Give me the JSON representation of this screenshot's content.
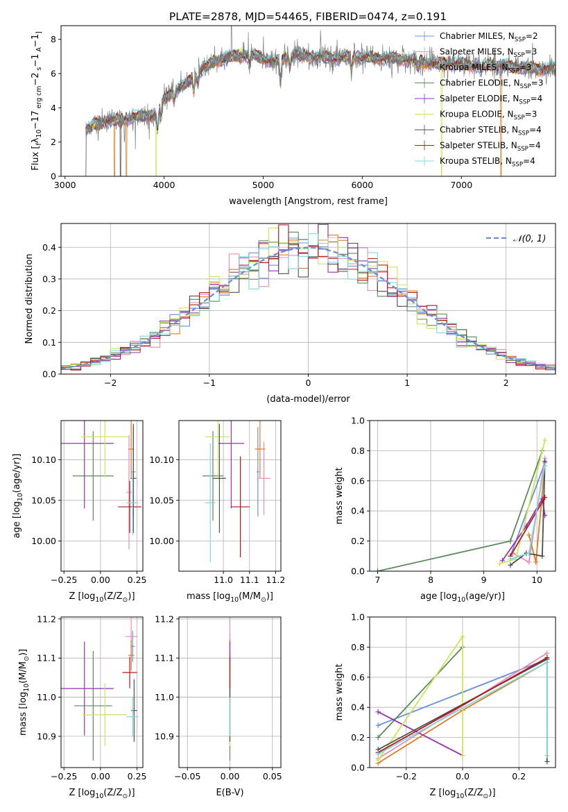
{
  "figure_title": "PLATE=2878, MJD=54465, FIBERID=0474, z=0.191",
  "colors": {
    "Chabrier MILES": "#6a8fd8",
    "Salpeter MILES": "#e88bbf",
    "Kroupa MILES": "#e07b20",
    "Chabrier ELODIE": "#5a8a5a",
    "Salpeter ELODIE": "#9a2fb0",
    "Kroupa ELODIE": "#c9e65a",
    "Chabrier STELIB": "#4d4d4d",
    "Salpeter STELIB": "#b01818",
    "Kroupa STELIB": "#7fd9d9"
  },
  "chart_data": [
    {
      "id": "spectrum",
      "type": "line",
      "title": "PLATE=2878, MJD=54465, FIBERID=0474, z=0.191",
      "xlabel": "wavelength [Angstrom, rest frame]",
      "ylabel_parts": [
        "Flux [",
        "f",
        "λ",
        "10",
        "−17",
        " erg cm",
        "−2",
        " s",
        "−1",
        " A",
        "−1",
        "]"
      ],
      "xlim": [
        2960,
        7950
      ],
      "ylim": [
        0,
        8.8
      ],
      "xticks": [
        3000,
        4000,
        5000,
        6000,
        7000
      ],
      "yticks": [
        0,
        2,
        4,
        6,
        8
      ],
      "grid": false,
      "legend_position": "top-right",
      "legend": [
        {
          "prefix": "Chabrier MILES, N",
          "sub": "SSP",
          "suffix": "=2",
          "series": "Chabrier MILES"
        },
        {
          "prefix": "Salpeter MILES, N",
          "sub": "SSP",
          "suffix": "=3",
          "series": "Salpeter MILES"
        },
        {
          "prefix": "Kroupa MILES, N",
          "sub": "SSP",
          "suffix": "=3",
          "series": "Kroupa MILES"
        },
        {
          "prefix": "Chabrier ELODIE, N",
          "sub": "SSP",
          "suffix": "=3",
          "series": "Chabrier ELODIE"
        },
        {
          "prefix": "Salpeter ELODIE, N",
          "sub": "SSP",
          "suffix": "=4",
          "series": "Salpeter ELODIE"
        },
        {
          "prefix": "Kroupa ELODIE, N",
          "sub": "SSP",
          "suffix": "=3",
          "series": "Kroupa ELODIE"
        },
        {
          "prefix": "Chabrier STELIB, N",
          "sub": "SSP",
          "suffix": "=4",
          "series": "Chabrier STELIB"
        },
        {
          "prefix": "Salpeter STELIB, N",
          "sub": "SSP",
          "suffix": "=4",
          "series": "Salpeter STELIB"
        },
        {
          "prefix": "Kroupa STELIB, N",
          "sub": "SSP",
          "suffix": "=4",
          "series": "Kroupa STELIB"
        }
      ],
      "data_series": "observed",
      "continuum": {
        "x": [
          3210,
          3300,
          3400,
          3500,
          3600,
          3700,
          3800,
          3900,
          4000,
          4100,
          4200,
          4300,
          4400,
          4500,
          4700,
          4900,
          5100,
          5300,
          5500,
          5700,
          5900,
          6100,
          6300,
          6500,
          6700,
          6900,
          7100,
          7300,
          7500,
          7700,
          7950
        ],
        "y": [
          2.7,
          3.0,
          3.2,
          3.3,
          3.3,
          3.5,
          3.5,
          3.6,
          4.5,
          5.0,
          5.3,
          5.8,
          6.3,
          6.7,
          7.0,
          7.1,
          6.7,
          7.1,
          7.0,
          6.9,
          7.0,
          6.9,
          6.9,
          6.8,
          6.6,
          6.6,
          6.5,
          6.5,
          6.4,
          6.3,
          6.3
        ]
      },
      "absorption": [
        [
          3934,
          1.2
        ],
        [
          3969,
          0.8
        ],
        [
          4102,
          0.5
        ],
        [
          4300,
          0.8
        ],
        [
          4340,
          0.5
        ],
        [
          4861,
          0.5
        ],
        [
          5175,
          1.3
        ],
        [
          5270,
          0.5
        ],
        [
          5890,
          0.8
        ],
        [
          6563,
          0.4
        ],
        [
          7200,
          0.4
        ]
      ],
      "spikes": [
        [
          3600,
          1.2
        ],
        [
          3710,
          2.8
        ],
        [
          3850,
          1.5
        ],
        [
          4030,
          1.2
        ],
        [
          4310,
          1.0
        ],
        [
          4680,
          2.2
        ],
        [
          4850,
          1.8
        ],
        [
          5000,
          1.3
        ],
        [
          5460,
          1.0
        ],
        [
          5580,
          1.0
        ],
        [
          5890,
          1.4
        ],
        [
          6300,
          1.2
        ],
        [
          6360,
          0.8
        ],
        [
          6860,
          0.9
        ],
        [
          7340,
          0.8
        ]
      ],
      "dropouts": [
        [
          3210,
          "Chabrier STELIB"
        ],
        [
          3500,
          "Kroupa MILES"
        ],
        [
          3560,
          "Chabrier STELIB"
        ],
        [
          3620,
          "Kroupa MILES"
        ],
        [
          3920,
          "Kroupa ELODIE"
        ],
        [
          6800,
          "Kroupa ELODIE"
        ],
        [
          7400,
          "Kroupa MILES"
        ]
      ]
    },
    {
      "id": "residuals",
      "type": "histogram",
      "xlabel": "(data-model)/error",
      "ylabel": "Normed distribution",
      "xlim": [
        -2.5,
        2.5
      ],
      "ylim": [
        0,
        0.475
      ],
      "xticks": [
        -2,
        -1,
        0,
        1,
        2
      ],
      "yticks": [
        0.0,
        0.1,
        0.2,
        0.3,
        0.4
      ],
      "grid": true,
      "legend_position": "top-right",
      "reference": {
        "label": "𝒩(0, 1)",
        "mean": 0,
        "sigma": 1
      },
      "bin_width": 0.1,
      "bin_start": -2.5,
      "series": [
        "Chabrier MILES",
        "Salpeter MILES",
        "Kroupa MILES",
        "Chabrier ELODIE",
        "Salpeter ELODIE",
        "Kroupa ELODIE",
        "Chabrier STELIB",
        "Salpeter STELIB",
        "Kroupa STELIB"
      ]
    },
    {
      "id": "age-vs-Z",
      "type": "errorbar",
      "xlabel_parts": [
        "Z [log",
        "10",
        "(Z/Z",
        "⊙",
        ")]"
      ],
      "ylabel_parts": [
        "age  [log",
        "10",
        "(age/yr)]"
      ],
      "xlim": [
        -0.27,
        0.29
      ],
      "ylim": [
        9.963,
        10.148
      ],
      "xticks": [
        -0.25,
        0.0,
        0.25
      ],
      "xticklabels": [
        "−0.25",
        "0.00",
        "0.25"
      ],
      "yticks": [
        10.0,
        10.05,
        10.1
      ],
      "yticklabels": [
        "10.00",
        "10.05",
        "10.10"
      ],
      "grid": true,
      "points": [
        {
          "series": "Chabrier MILES",
          "x": 0.225,
          "xerr": 0.015,
          "y": 10.085,
          "yerr": 0.055
        },
        {
          "series": "Salpeter MILES",
          "x": 0.195,
          "xerr": 0.02,
          "y": 10.06,
          "yerr": 0.07
        },
        {
          "series": "Kroupa MILES",
          "x": 0.21,
          "xerr": 0.02,
          "y": 10.113,
          "yerr": 0.035
        },
        {
          "series": "Chabrier ELODIE",
          "x": -0.05,
          "xerr": 0.14,
          "y": 10.08,
          "yerr": 0.055
        },
        {
          "series": "Salpeter ELODIE",
          "x": -0.11,
          "xerr": 0.2,
          "y": 10.12,
          "yerr": 0.08
        },
        {
          "series": "Kroupa ELODIE",
          "x": 0.03,
          "xerr": 0.16,
          "y": 10.128,
          "yerr": 0.05
        },
        {
          "series": "Chabrier STELIB",
          "x": 0.225,
          "xerr": 0.02,
          "y": 10.077,
          "yerr": 0.067
        },
        {
          "series": "Salpeter STELIB",
          "x": 0.2,
          "xerr": 0.08,
          "y": 10.042,
          "yerr": 0.032
        },
        {
          "series": "Kroupa STELIB",
          "x": 0.22,
          "xerr": 0.04,
          "y": 10.047,
          "yerr": 0.04
        }
      ]
    },
    {
      "id": "age-vs-mass",
      "type": "errorbar",
      "xlabel_parts": [
        "mass [log",
        "10",
        "(M/M",
        "⊙",
        ")]"
      ],
      "ylabel_parts": [],
      "xlim": [
        10.83,
        11.22
      ],
      "ylim": [
        9.963,
        10.148
      ],
      "xticks": [
        11.0,
        11.1,
        11.2
      ],
      "xticklabels": [
        "11.0",
        "11.1",
        "11.2"
      ],
      "yticks": [
        10.0,
        10.05,
        10.1
      ],
      "yticklabels": [
        "10.00",
        "10.05",
        "10.10"
      ],
      "grid": true,
      "points": [
        {
          "series": "Chabrier MILES",
          "x": 11.132,
          "xerr": 0.005,
          "y": 10.085,
          "yerr": 0.055
        },
        {
          "series": "Salpeter MILES",
          "x": 11.155,
          "xerr": 0.025,
          "y": 10.077,
          "yerr": 0.045
        },
        {
          "series": "Kroupa MILES",
          "x": 11.14,
          "xerr": 0.02,
          "y": 10.113,
          "yerr": 0.035
        },
        {
          "series": "Chabrier ELODIE",
          "x": 10.96,
          "xerr": 0.04,
          "y": 10.08,
          "yerr": 0.055
        },
        {
          "series": "Salpeter ELODIE",
          "x": 11.03,
          "xerr": 0.05,
          "y": 10.12,
          "yerr": 0.08
        },
        {
          "series": "Kroupa ELODIE",
          "x": 10.98,
          "xerr": 0.05,
          "y": 10.128,
          "yerr": 0.05
        },
        {
          "series": "Chabrier STELIB",
          "x": 10.985,
          "xerr": 0.025,
          "y": 10.077,
          "yerr": 0.067
        },
        {
          "series": "Salpeter STELIB",
          "x": 11.065,
          "xerr": 0.035,
          "y": 10.042,
          "yerr": 0.062
        },
        {
          "series": "Kroupa STELIB",
          "x": 10.95,
          "xerr": 0.02,
          "y": 10.047,
          "yerr": 0.073
        }
      ]
    },
    {
      "id": "weight-vs-age",
      "type": "line",
      "xlabel_parts": [
        "age  [log",
        "10",
        "(age/yr)]"
      ],
      "ylabel": "mass weight",
      "xlim": [
        6.85,
        10.35
      ],
      "ylim": [
        0,
        1.0
      ],
      "xticks": [
        7,
        8,
        9,
        10
      ],
      "xticklabels": [
        "7",
        "8",
        "9",
        "10"
      ],
      "yticks": [
        0.0,
        0.2,
        0.4,
        0.6,
        0.8,
        1.0
      ],
      "yticklabels": [
        "0.0",
        "0.2",
        "0.4",
        "0.6",
        "0.8",
        "1.0"
      ],
      "grid": true,
      "series": [
        {
          "name": "Chabrier MILES",
          "x": [
            9.5,
            10.15
          ],
          "y": [
            0.1,
            0.72
          ]
        },
        {
          "name": "Salpeter MILES",
          "x": [
            9.55,
            9.85,
            10.15
          ],
          "y": [
            0.12,
            0.06,
            0.75
          ]
        },
        {
          "name": "Kroupa MILES",
          "x": [
            9.85,
            9.98,
            10.15
          ],
          "y": [
            0.24,
            0.06,
            0.7
          ]
        },
        {
          "name": "Chabrier ELODIE",
          "x": [
            7.0,
            9.5,
            10.1
          ],
          "y": [
            0.0,
            0.2,
            0.8
          ]
        },
        {
          "name": "Salpeter ELODIE",
          "x": [
            9.35,
            9.8,
            10.1,
            10.15
          ],
          "y": [
            0.07,
            0.3,
            0.48,
            0.37
          ]
        },
        {
          "name": "Kroupa ELODIE",
          "x": [
            9.3,
            9.6,
            10.15
          ],
          "y": [
            0.05,
            0.08,
            0.87
          ]
        },
        {
          "name": "Chabrier STELIB",
          "x": [
            9.5,
            9.8,
            10.1,
            10.15
          ],
          "y": [
            0.04,
            0.12,
            0.1,
            0.73
          ]
        },
        {
          "name": "Salpeter STELIB",
          "x": [
            9.5,
            10.15
          ],
          "y": [
            0.1,
            0.49
          ]
        },
        {
          "name": "Kroupa STELIB",
          "x": [
            9.5,
            9.85,
            10.15
          ],
          "y": [
            0.08,
            0.12,
            0.7
          ]
        }
      ]
    },
    {
      "id": "mass-vs-Z",
      "type": "errorbar",
      "xlabel_parts": [
        "Z [log",
        "10",
        "(Z/Z",
        "⊙",
        ")]"
      ],
      "ylabel_parts": [
        "mass [log",
        "10",
        "(M/M",
        "⊙",
        ")]"
      ],
      "xlim": [
        -0.27,
        0.29
      ],
      "ylim": [
        10.82,
        11.205
      ],
      "xticks": [
        -0.25,
        0.0,
        0.25
      ],
      "xticklabels": [
        "−0.25",
        "0.00",
        "0.25"
      ],
      "yticks": [
        10.9,
        11.0,
        11.1,
        11.2
      ],
      "yticklabels": [
        "10.9",
        "11.0",
        "11.1",
        "11.2"
      ],
      "grid": true,
      "points": [
        {
          "series": "Chabrier MILES",
          "x": 0.22,
          "xerr": 0.015,
          "y": 11.13,
          "yerr": 0.04
        },
        {
          "series": "Salpeter MILES",
          "x": 0.21,
          "xerr": 0.04,
          "y": 11.155,
          "yerr": 0.05
        },
        {
          "series": "Kroupa MILES",
          "x": 0.21,
          "xerr": 0.02,
          "y": 11.107,
          "yerr": 0.04
        },
        {
          "series": "Chabrier ELODIE",
          "x": -0.05,
          "xerr": 0.13,
          "y": 10.978,
          "yerr": 0.14
        },
        {
          "series": "Salpeter ELODIE",
          "x": -0.11,
          "xerr": 0.2,
          "y": 11.022,
          "yerr": 0.12
        },
        {
          "series": "Kroupa ELODIE",
          "x": 0.03,
          "xerr": 0.15,
          "y": 10.955,
          "yerr": 0.08
        },
        {
          "series": "Chabrier STELIB",
          "x": 0.23,
          "xerr": 0.02,
          "y": 10.966,
          "yerr": 0.08
        },
        {
          "series": "Salpeter STELIB",
          "x": 0.2,
          "xerr": 0.05,
          "y": 11.063,
          "yerr": 0.04
        },
        {
          "series": "Kroupa STELIB",
          "x": 0.22,
          "xerr": 0.04,
          "y": 10.95,
          "yerr": 0.05
        }
      ]
    },
    {
      "id": "mass-vs-EBV",
      "type": "errorbar",
      "xlabel": "E(B-V)",
      "ylabel_parts": [],
      "xlim": [
        -0.06,
        0.06
      ],
      "ylim": [
        10.82,
        11.205
      ],
      "xticks": [
        -0.05,
        0.0,
        0.05
      ],
      "xticklabels": [
        "−0.05",
        "0.00",
        "0.05"
      ],
      "yticks": [
        10.9,
        11.0,
        11.1,
        11.2
      ],
      "yticklabels": [
        "10.9",
        "11.0",
        "11.1",
        "11.2"
      ],
      "grid": true,
      "points": [
        {
          "series": "Chabrier MILES",
          "x": 0.0,
          "xerr": 0.0,
          "y": 11.13,
          "yerr": 0.04
        },
        {
          "series": "Salpeter MILES",
          "x": 0.0,
          "xerr": 0.0,
          "y": 11.155,
          "yerr": 0.05
        },
        {
          "series": "Kroupa MILES",
          "x": 0.0,
          "xerr": 0.0,
          "y": 11.107,
          "yerr": 0.04
        },
        {
          "series": "Chabrier ELODIE",
          "x": 0.0,
          "xerr": 0.0,
          "y": 10.978,
          "yerr": 0.14
        },
        {
          "series": "Salpeter ELODIE",
          "x": 0.0,
          "xerr": 0.0,
          "y": 11.022,
          "yerr": 0.12
        },
        {
          "series": "Kroupa ELODIE",
          "x": 0.0,
          "xerr": 0.0,
          "y": 10.955,
          "yerr": 0.08
        },
        {
          "series": "Chabrier STELIB",
          "x": 0.0,
          "xerr": 0.0,
          "y": 10.966,
          "yerr": 0.08
        },
        {
          "series": "Salpeter STELIB",
          "x": 0.0,
          "xerr": 0.0,
          "y": 11.063,
          "yerr": 0.04
        },
        {
          "series": "Kroupa STELIB",
          "x": 0.0,
          "xerr": 0.0,
          "y": 10.95,
          "yerr": 0.05
        }
      ]
    },
    {
      "id": "weight-vs-Z",
      "type": "line",
      "xlabel_parts": [
        "Z [log",
        "10",
        "(Z/Z",
        "⊙",
        ")]"
      ],
      "ylabel": "mass weight",
      "xlim": [
        -0.33,
        0.33
      ],
      "ylim": [
        0,
        1.0
      ],
      "xticks": [
        -0.2,
        0.0,
        0.2
      ],
      "xticklabels": [
        "−0.2",
        "0.0",
        "0.2"
      ],
      "yticks": [
        0.0,
        0.2,
        0.4,
        0.6,
        0.8,
        1.0
      ],
      "yticklabels": [
        "0.0",
        "0.2",
        "0.4",
        "0.6",
        "0.8",
        "1.0"
      ],
      "grid": true,
      "series": [
        {
          "name": "Chabrier MILES",
          "x": [
            -0.3,
            0.0,
            0.3
          ],
          "y": [
            0.28,
            0.5,
            0.72
          ]
        },
        {
          "name": "Salpeter MILES",
          "x": [
            -0.3,
            0.3
          ],
          "y": [
            0.06,
            0.76
          ]
        },
        {
          "name": "Kroupa MILES",
          "x": [
            -0.3,
            0.0,
            0.3
          ],
          "y": [
            0.03,
            0.38,
            0.7
          ]
        },
        {
          "name": "Chabrier ELODIE",
          "x": [
            -0.3,
            0.0
          ],
          "y": [
            0.2,
            0.8
          ]
        },
        {
          "name": "Salpeter ELODIE",
          "x": [
            -0.3,
            0.0
          ],
          "y": [
            0.37,
            0.08
          ]
        },
        {
          "name": "Kroupa ELODIE",
          "x": [
            -0.3,
            0.0,
            0.0
          ],
          "y": [
            0.05,
            0.87,
            0.08
          ]
        },
        {
          "name": "Chabrier STELIB",
          "x": [
            -0.3,
            0.3,
            0.3
          ],
          "y": [
            0.12,
            0.72,
            0.04
          ]
        },
        {
          "name": "Salpeter STELIB",
          "x": [
            -0.3,
            0.3
          ],
          "y": [
            0.1,
            0.73
          ]
        },
        {
          "name": "Kroupa STELIB",
          "x": [
            -0.3,
            0.3,
            0.3
          ],
          "y": [
            0.09,
            0.7,
            0.08
          ]
        }
      ]
    }
  ]
}
